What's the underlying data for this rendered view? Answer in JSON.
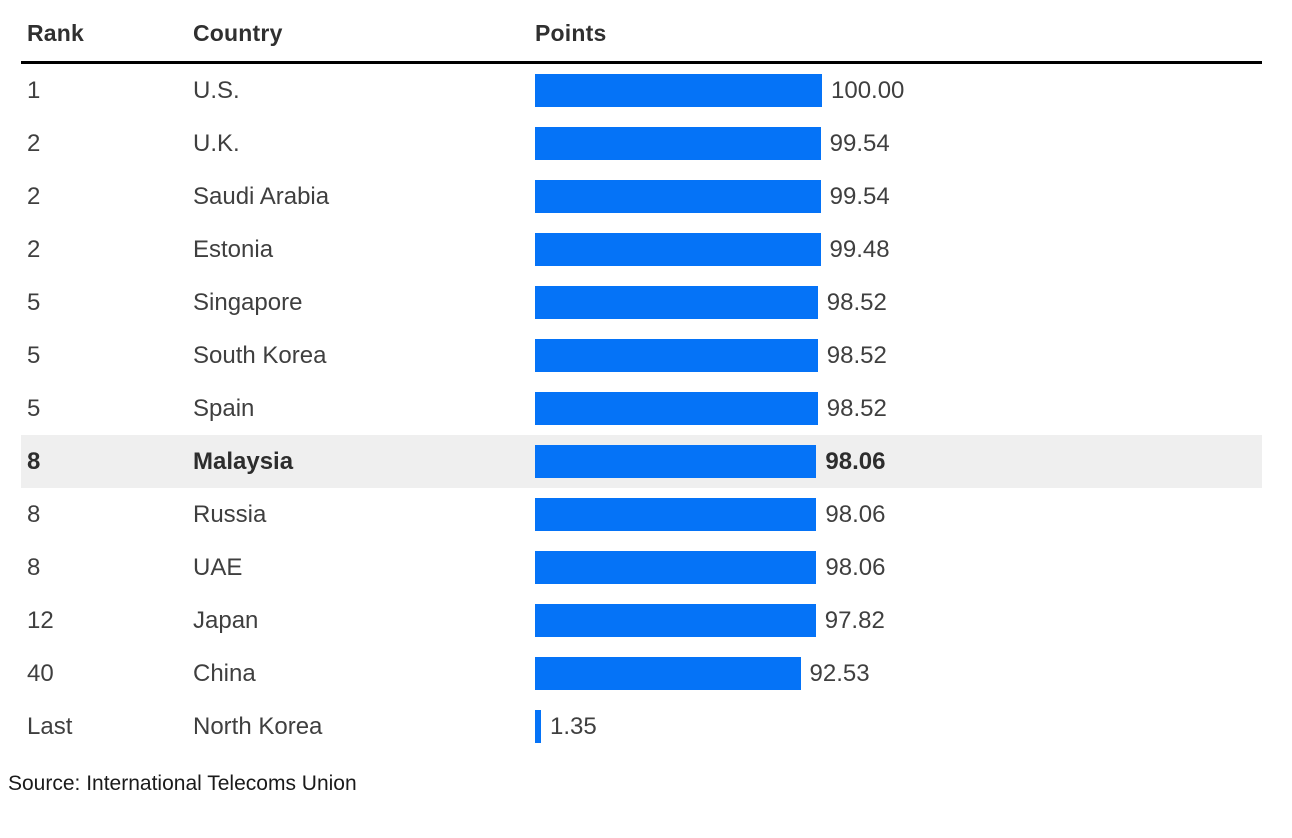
{
  "header": {
    "rank_label": "Rank",
    "country_label": "Country",
    "points_label": "Points"
  },
  "source": "Source: International Telecoms Union",
  "colors": {
    "bar_blue": "#0573f7",
    "highlight_row_bg": "#efefef",
    "header_rule_black": "#000000",
    "body_text": "#3f3f3f"
  },
  "chart_data": {
    "type": "bar",
    "orientation": "horizontal",
    "columns": [
      "Rank",
      "Country",
      "Points"
    ],
    "value_range": [
      0,
      100
    ],
    "value_format": "2-decimals",
    "highlighted_country": "Malaysia",
    "source_note": "Source: International Telecoms Union",
    "rows": [
      {
        "rank": "1",
        "country": "U.S.",
        "points": 100.0,
        "highlighted": false
      },
      {
        "rank": "2",
        "country": "U.K.",
        "points": 99.54,
        "highlighted": false
      },
      {
        "rank": "2",
        "country": "Saudi Arabia",
        "points": 99.54,
        "highlighted": false
      },
      {
        "rank": "2",
        "country": "Estonia",
        "points": 99.48,
        "highlighted": false
      },
      {
        "rank": "5",
        "country": "Singapore",
        "points": 98.52,
        "highlighted": false
      },
      {
        "rank": "5",
        "country": "South Korea",
        "points": 98.52,
        "highlighted": false
      },
      {
        "rank": "5",
        "country": "Spain",
        "points": 98.52,
        "highlighted": false
      },
      {
        "rank": "8",
        "country": "Malaysia",
        "points": 98.06,
        "highlighted": true
      },
      {
        "rank": "8",
        "country": "Russia",
        "points": 98.06,
        "highlighted": false
      },
      {
        "rank": "8",
        "country": "UAE",
        "points": 98.06,
        "highlighted": false
      },
      {
        "rank": "12",
        "country": "Japan",
        "points": 97.82,
        "highlighted": false
      },
      {
        "rank": "40",
        "country": "China",
        "points": 92.53,
        "highlighted": false
      },
      {
        "rank": "Last",
        "country": "North Korea",
        "points": 1.35,
        "highlighted": false
      }
    ]
  }
}
